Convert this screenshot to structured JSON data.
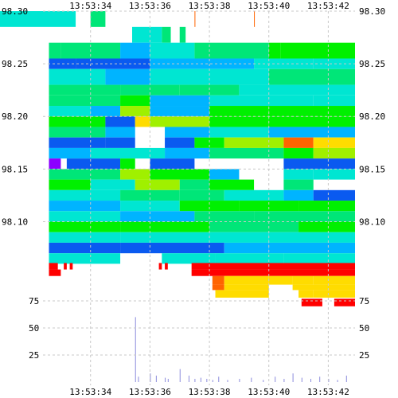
{
  "chart_data": {
    "type": "heatmap",
    "title": "",
    "xlabel": "",
    "ylabel": "",
    "grid": true,
    "x_ticks": [
      "13:53:34",
      "13:53:36",
      "13:53:38",
      "13:53:40",
      "13:53:42"
    ],
    "x_range": [
      "13:53:32.4",
      "13:53:42.9"
    ],
    "price_ticks": [
      "98.30",
      "98.25",
      "98.20",
      "98.15",
      "98.10"
    ],
    "price_range": [
      98.055,
      98.3
    ],
    "volume_ticks": [
      "75",
      "50",
      "25"
    ],
    "volume_range": [
      0,
      100
    ],
    "colorscale": [
      "#0a5af0",
      "#00b4ff",
      "#00e6d2",
      "#00e678",
      "#00f000",
      "#a0f000",
      "#ffdc00",
      "#ff6400",
      "#ff0000",
      "#8c00ff"
    ],
    "bands": [
      {
        "p0": 98.285,
        "p1": 98.3,
        "segments": [
          [
            13.5,
            33.5,
            2
          ],
          [
            34.0,
            34.5,
            3
          ],
          [
            37.5,
            37.5,
            7
          ],
          [
            39.5,
            39.5,
            7
          ]
        ]
      },
      {
        "p0": 98.27,
        "p1": 98.285,
        "segments": [
          [
            35.4,
            36.4,
            2
          ],
          [
            36.4,
            36.7,
            3
          ],
          [
            37.0,
            37.2,
            3
          ]
        ]
      },
      {
        "p0": 98.255,
        "p1": 98.27,
        "segments": [
          [
            32.6,
            33.0,
            3
          ],
          [
            33.0,
            35.0,
            3
          ],
          [
            35.0,
            36.0,
            1
          ],
          [
            36.0,
            37.5,
            2
          ],
          [
            37.5,
            40.0,
            3
          ],
          [
            40.0,
            40.4,
            4
          ],
          [
            40.4,
            42.9,
            4
          ]
        ]
      },
      {
        "p0": 98.245,
        "p1": 98.255,
        "segments": [
          [
            32.6,
            33.5,
            0
          ],
          [
            33.5,
            36.0,
            0
          ],
          [
            36.0,
            39.5,
            1
          ],
          [
            39.5,
            41.5,
            2
          ],
          [
            41.5,
            42.9,
            2
          ]
        ]
      },
      {
        "p0": 98.23,
        "p1": 98.245,
        "segments": [
          [
            32.6,
            34.5,
            2
          ],
          [
            34.5,
            36.0,
            1
          ],
          [
            36.0,
            40.0,
            2
          ],
          [
            40.0,
            42.9,
            3
          ]
        ]
      },
      {
        "p0": 98.22,
        "p1": 98.23,
        "segments": [
          [
            32.6,
            35.0,
            3
          ],
          [
            35.0,
            37.0,
            3
          ],
          [
            37.0,
            39.0,
            3
          ],
          [
            39.0,
            42.9,
            2
          ]
        ]
      },
      {
        "p0": 98.21,
        "p1": 98.22,
        "segments": [
          [
            32.6,
            35.0,
            3
          ],
          [
            35.0,
            36.0,
            4
          ],
          [
            36.0,
            38.0,
            1
          ],
          [
            38.0,
            41.5,
            2
          ],
          [
            41.5,
            42.9,
            2
          ]
        ]
      },
      {
        "p0": 98.2,
        "p1": 98.21,
        "segments": [
          [
            32.6,
            34.0,
            2
          ],
          [
            34.0,
            35.0,
            1
          ],
          [
            35.0,
            36.0,
            5
          ],
          [
            36.0,
            38.0,
            1
          ],
          [
            38.0,
            40.0,
            4
          ],
          [
            40.0,
            42.9,
            4
          ]
        ]
      },
      {
        "p0": 98.19,
        "p1": 98.2,
        "segments": [
          [
            32.6,
            34.5,
            4
          ],
          [
            34.5,
            35.5,
            0
          ],
          [
            35.5,
            36.0,
            6
          ],
          [
            36.0,
            38.0,
            5
          ],
          [
            38.0,
            40.0,
            4
          ],
          [
            40.0,
            42.9,
            4
          ]
        ]
      },
      {
        "p0": 98.18,
        "p1": 98.19,
        "segments": [
          [
            32.6,
            34.5,
            3
          ],
          [
            34.5,
            35.5,
            1
          ],
          [
            36.5,
            38.0,
            1
          ],
          [
            38.0,
            40.0,
            2
          ],
          [
            40.0,
            42.9,
            1
          ]
        ]
      },
      {
        "p0": 98.17,
        "p1": 98.18,
        "segments": [
          [
            32.6,
            34.5,
            0
          ],
          [
            34.5,
            35.5,
            0
          ],
          [
            36.5,
            37.5,
            0
          ],
          [
            37.5,
            38.5,
            4
          ],
          [
            38.5,
            40.5,
            5
          ],
          [
            40.5,
            41.5,
            7
          ],
          [
            41.5,
            42.9,
            6
          ]
        ]
      },
      {
        "p0": 98.16,
        "p1": 98.17,
        "segments": [
          [
            32.6,
            34.0,
            1
          ],
          [
            34.0,
            36.5,
            2
          ],
          [
            36.5,
            38.0,
            1
          ],
          [
            38.0,
            40.5,
            3
          ],
          [
            40.5,
            41.5,
            4
          ],
          [
            41.5,
            42.9,
            5
          ]
        ]
      },
      {
        "p0": 98.15,
        "p1": 98.16,
        "segments": [
          [
            32.6,
            33.0,
            9
          ],
          [
            33.2,
            35.0,
            0
          ],
          [
            35.0,
            35.5,
            4
          ],
          [
            36.0,
            37.5,
            0
          ],
          [
            40.5,
            42.9,
            0
          ]
        ]
      },
      {
        "p0": 98.14,
        "p1": 98.15,
        "segments": [
          [
            32.6,
            35.0,
            3
          ],
          [
            35.0,
            36.0,
            5
          ],
          [
            36.0,
            38.0,
            4
          ],
          [
            38.0,
            39.0,
            1
          ],
          [
            40.5,
            41.5,
            2
          ],
          [
            41.5,
            42.9,
            2
          ]
        ]
      },
      {
        "p0": 98.13,
        "p1": 98.14,
        "segments": [
          [
            32.6,
            34.0,
            4
          ],
          [
            34.0,
            35.5,
            2
          ],
          [
            35.5,
            37.0,
            5
          ],
          [
            37.0,
            38.0,
            3
          ],
          [
            38.0,
            39.5,
            4
          ],
          [
            40.5,
            41.5,
            3
          ]
        ]
      },
      {
        "p0": 98.12,
        "p1": 98.13,
        "segments": [
          [
            32.6,
            35.0,
            2
          ],
          [
            35.0,
            37.0,
            3
          ],
          [
            37.0,
            38.5,
            3
          ],
          [
            38.5,
            40.5,
            2
          ],
          [
            40.5,
            41.5,
            1
          ],
          [
            41.5,
            42.9,
            0
          ]
        ]
      },
      {
        "p0": 98.11,
        "p1": 98.12,
        "segments": [
          [
            32.6,
            35.0,
            1
          ],
          [
            35.0,
            37.0,
            2
          ],
          [
            37.0,
            39.0,
            4
          ],
          [
            39.0,
            41.0,
            4
          ],
          [
            41.0,
            42.9,
            4
          ]
        ]
      },
      {
        "p0": 98.1,
        "p1": 98.11,
        "segments": [
          [
            32.6,
            35.0,
            2
          ],
          [
            35.0,
            37.5,
            1
          ],
          [
            37.5,
            39.5,
            3
          ],
          [
            39.5,
            42.9,
            3
          ]
        ]
      },
      {
        "p0": 98.09,
        "p1": 98.1,
        "segments": [
          [
            32.6,
            35.0,
            4
          ],
          [
            35.0,
            38.0,
            4
          ],
          [
            38.0,
            41.0,
            3
          ],
          [
            41.0,
            42.9,
            4
          ]
        ]
      },
      {
        "p0": 98.08,
        "p1": 98.09,
        "segments": [
          [
            32.6,
            35.0,
            2
          ],
          [
            35.0,
            38.0,
            2
          ],
          [
            38.0,
            40.0,
            2
          ],
          [
            40.0,
            42.9,
            2
          ]
        ]
      },
      {
        "p0": 98.07,
        "p1": 98.08,
        "segments": [
          [
            32.6,
            35.0,
            0
          ],
          [
            35.0,
            38.5,
            0
          ],
          [
            38.5,
            40.0,
            1
          ],
          [
            40.0,
            42.9,
            1
          ]
        ]
      },
      {
        "p0": 98.06,
        "p1": 98.07,
        "segments": [
          [
            32.6,
            35.0,
            2
          ],
          [
            36.4,
            38.2,
            2
          ],
          [
            38.2,
            40.5,
            2
          ],
          [
            40.5,
            42.9,
            2
          ]
        ]
      }
    ],
    "lower_rows": [
      {
        "v0": 104,
        "v1": 110,
        "segments": [
          [
            32.6,
            32.9,
            8
          ],
          [
            33.1,
            33.2,
            8
          ],
          [
            33.3,
            33.4,
            8
          ],
          [
            36.3,
            36.4,
            8
          ],
          [
            36.5,
            36.6,
            8
          ],
          [
            37.4,
            42.9,
            8
          ]
        ]
      },
      {
        "v0": 98,
        "v1": 104,
        "segments": [
          [
            32.6,
            33.0,
            8
          ],
          [
            37.4,
            42.9,
            8
          ]
        ]
      },
      {
        "v0": 90,
        "v1": 98,
        "segments": [
          [
            38.1,
            38.5,
            7
          ],
          [
            38.5,
            40.0,
            6
          ],
          [
            40.0,
            40.8,
            6
          ],
          [
            40.8,
            41.5,
            6
          ],
          [
            41.5,
            42.9,
            6
          ]
        ]
      },
      {
        "v0": 85,
        "v1": 90,
        "segments": [
          [
            38.1,
            38.5,
            7
          ],
          [
            38.5,
            40.0,
            6
          ],
          [
            40.8,
            42.9,
            6
          ]
        ]
      },
      {
        "v0": 78,
        "v1": 85,
        "segments": [
          [
            38.2,
            40.0,
            6
          ],
          [
            41.0,
            41.5,
            6
          ],
          [
            41.5,
            42.9,
            6
          ]
        ]
      },
      {
        "v0": 70,
        "v1": 77,
        "segments": [
          [
            41.1,
            41.8,
            8
          ],
          [
            42.2,
            42.9,
            8
          ]
        ]
      }
    ],
    "volume_bars": [
      {
        "t": 35.5,
        "v": 60
      },
      {
        "t": 35.6,
        "v": 5
      },
      {
        "t": 36.0,
        "v": 8
      },
      {
        "t": 36.2,
        "v": 6
      },
      {
        "t": 36.5,
        "v": 4
      },
      {
        "t": 36.6,
        "v": 3
      },
      {
        "t": 37.0,
        "v": 12
      },
      {
        "t": 37.3,
        "v": 6
      },
      {
        "t": 37.5,
        "v": 3
      },
      {
        "t": 37.7,
        "v": 4
      },
      {
        "t": 37.9,
        "v": 3
      },
      {
        "t": 38.1,
        "v": 2
      },
      {
        "t": 38.3,
        "v": 5
      },
      {
        "t": 38.6,
        "v": 2
      },
      {
        "t": 39.0,
        "v": 3
      },
      {
        "t": 39.4,
        "v": 4
      },
      {
        "t": 39.8,
        "v": 2
      },
      {
        "t": 40.2,
        "v": 5
      },
      {
        "t": 40.5,
        "v": 3
      },
      {
        "t": 40.8,
        "v": 8
      },
      {
        "t": 41.1,
        "v": 4
      },
      {
        "t": 41.4,
        "v": 3
      },
      {
        "t": 41.7,
        "v": 5
      },
      {
        "t": 42.0,
        "v": 3
      },
      {
        "t": 42.3,
        "v": 2
      },
      {
        "t": 42.6,
        "v": 6
      }
    ]
  }
}
